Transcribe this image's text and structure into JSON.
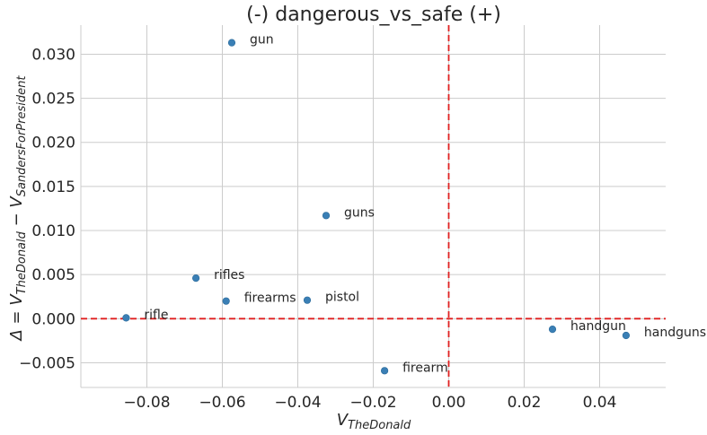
{
  "chart_data": {
    "type": "scatter",
    "title": "(-) dangerous_vs_safe (+)",
    "xlabel": {
      "base": "V",
      "sub": "TheDonald"
    },
    "ylabel": {
      "prefix": "Δ = V",
      "sub1": "TheDonald",
      "mid": " − V",
      "sub2": "SandersForPresident"
    },
    "xlim": [
      -0.0975,
      0.0575
    ],
    "ylim": [
      -0.0078,
      0.0333
    ],
    "xticks": [
      -0.08,
      -0.06,
      -0.04,
      -0.02,
      0.0,
      0.02,
      0.04
    ],
    "xtick_labels": [
      "−0.08",
      "−0.06",
      "−0.04",
      "−0.02",
      "0.00",
      "0.02",
      "0.04"
    ],
    "yticks": [
      -0.005,
      0.0,
      0.005,
      0.01,
      0.015,
      0.02,
      0.025,
      0.03
    ],
    "ytick_labels": [
      "−0.005",
      "0.000",
      "0.005",
      "0.010",
      "0.015",
      "0.020",
      "0.025",
      "0.030"
    ],
    "grid": true,
    "reference_lines": {
      "x": 0,
      "y": 0,
      "color": "#e02020",
      "style": "dashed"
    },
    "point_color": "#3a7fb5",
    "points": [
      {
        "label": "gun",
        "x": -0.0575,
        "y": 0.0313
      },
      {
        "label": "guns",
        "x": -0.0325,
        "y": 0.0117
      },
      {
        "label": "rifles",
        "x": -0.067,
        "y": 0.0046
      },
      {
        "label": "firearms",
        "x": -0.059,
        "y": 0.002
      },
      {
        "label": "pistol",
        "x": -0.0375,
        "y": 0.0021
      },
      {
        "label": "rifle",
        "x": -0.0855,
        "y": 0.0001
      },
      {
        "label": "handgun",
        "x": 0.0275,
        "y": -0.0012
      },
      {
        "label": "handguns",
        "x": 0.047,
        "y": -0.0019
      },
      {
        "label": "firearm",
        "x": -0.017,
        "y": -0.0059
      }
    ]
  }
}
